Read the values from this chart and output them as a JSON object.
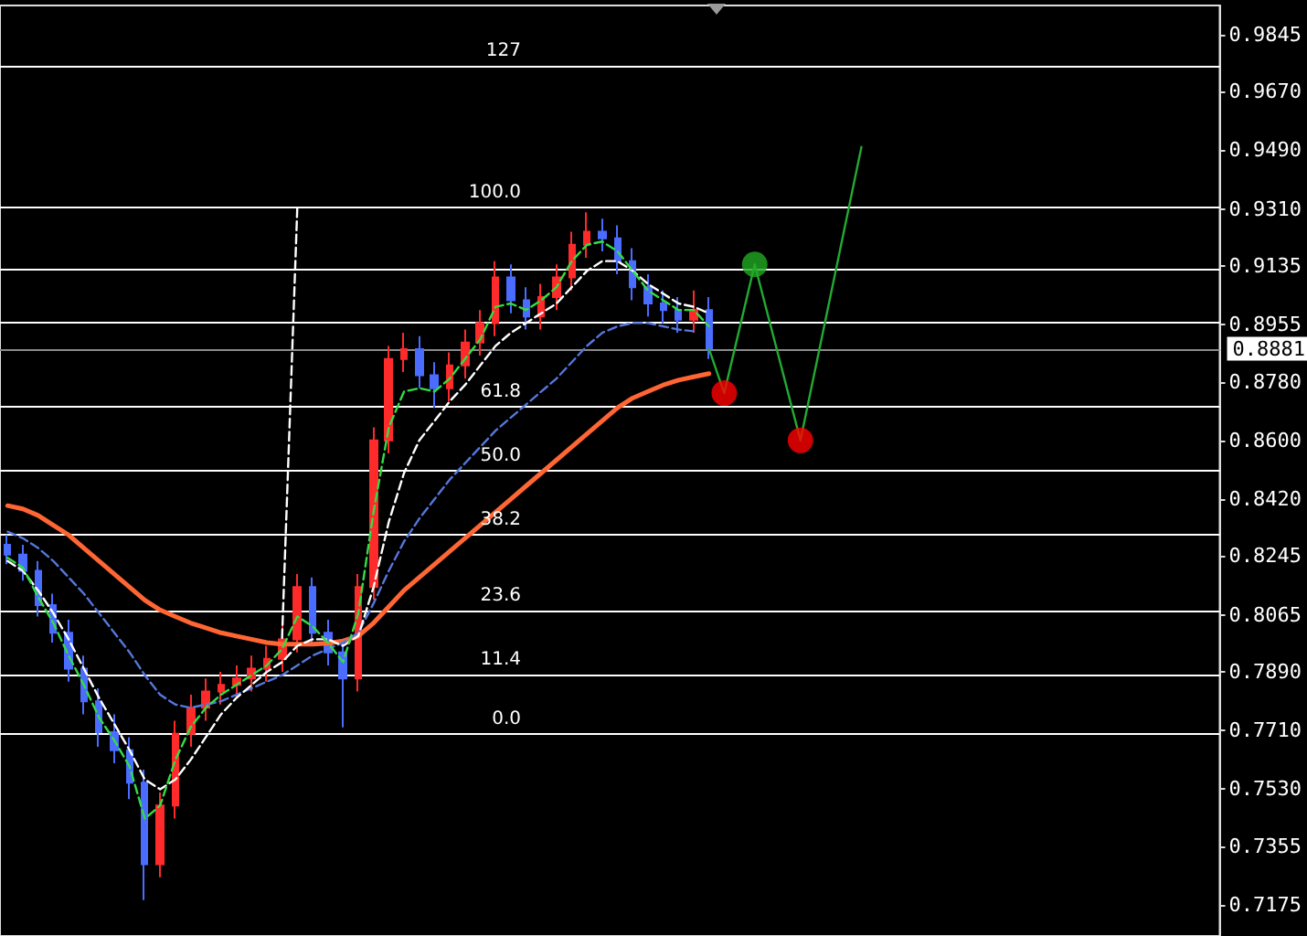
{
  "chart_data": {
    "type": "candlestick",
    "categories": [
      null,
      null,
      null,
      null,
      null,
      null,
      null,
      null,
      null,
      null,
      null,
      null,
      null,
      null,
      null,
      null,
      null,
      null,
      null,
      null,
      null,
      null,
      null,
      null,
      null,
      null,
      null,
      null,
      null,
      null,
      null,
      null,
      null,
      null,
      null,
      null,
      null,
      null,
      null,
      null,
      null,
      null,
      null,
      null,
      null,
      null,
      null,
      null,
      null,
      null,
      null,
      null,
      null,
      null,
      null,
      null,
      null,
      null,
      null,
      null,
      null,
      null,
      null,
      null,
      null,
      null,
      null,
      null,
      null,
      null,
      null,
      null,
      null,
      null,
      null,
      null,
      null,
      null,
      null,
      null
    ],
    "series": [
      {
        "colors": [
          "#4a6cff",
          "#4a6cff",
          "#4a6cff",
          "#4a6cff",
          "#4a6cff",
          "#4a6cff",
          "#4a6cff",
          "#4a6cff",
          "#4a6cff",
          "#4a6cff",
          "#ff2a2a",
          "#ff2a2a",
          "#ff2a2a",
          "#ff2a2a",
          "#ff2a2a",
          "#ff2a2a",
          "#ff2a2a",
          "#ff2a2a",
          "#ff2a2a",
          "#ff2a2a",
          "#4a6cff",
          "#4a6cff",
          "#4a6cff",
          "#ff2a2a",
          "#ff2a2a",
          "#ff2a2a",
          "#ff2a2a",
          "#4a6cff",
          "#4a6cff",
          "#ff2a2a",
          "#ff2a2a",
          "#ff2a2a",
          "#ff2a2a",
          "#4a6cff",
          "#4a6cff",
          "#ff2a2a",
          "#ff2a2a",
          "#ff2a2a",
          "#ff2a2a",
          "#4a6cff",
          "#4a6cff",
          "#4a6cff",
          "#4a6cff",
          "#4a6cff",
          "#4a6cff",
          "#ff2a2a",
          "#4a6cff",
          null,
          null,
          null,
          null,
          null,
          null,
          null,
          null,
          null,
          null,
          null,
          null,
          null,
          null,
          null,
          null,
          null,
          null,
          null,
          null,
          null,
          null,
          null,
          null,
          null,
          null,
          null,
          null,
          null,
          null,
          null,
          null,
          null
        ],
        "ohlc": [
          [
            0.828,
            0.831,
            0.822,
            0.825
          ],
          [
            0.825,
            0.828,
            0.817,
            0.82
          ],
          [
            0.82,
            0.823,
            0.806,
            0.8095
          ],
          [
            0.8095,
            0.813,
            0.798,
            0.801
          ],
          [
            0.801,
            0.805,
            0.786,
            0.79
          ],
          [
            0.79,
            0.794,
            0.776,
            0.78
          ],
          [
            0.78,
            0.784,
            0.766,
            0.7705
          ],
          [
            0.7705,
            0.776,
            0.761,
            0.765
          ],
          [
            0.765,
            0.769,
            0.75,
            0.755
          ],
          [
            0.755,
            0.759,
            0.719,
            0.73
          ],
          [
            0.73,
            0.752,
            0.726,
            0.748
          ],
          [
            0.748,
            0.774,
            0.744,
            0.77
          ],
          [
            0.77,
            0.782,
            0.766,
            0.778
          ],
          [
            0.778,
            0.787,
            0.774,
            0.783
          ],
          [
            0.783,
            0.789,
            0.779,
            0.785
          ],
          [
            0.785,
            0.791,
            0.781,
            0.787
          ],
          [
            0.787,
            0.794,
            0.783,
            0.79
          ],
          [
            0.79,
            0.797,
            0.786,
            0.793
          ],
          [
            0.793,
            0.804,
            0.789,
            0.799
          ],
          [
            0.799,
            0.819,
            0.795,
            0.815
          ],
          [
            0.815,
            0.818,
            0.797,
            0.801
          ],
          [
            0.801,
            0.805,
            0.791,
            0.795
          ],
          [
            0.795,
            0.799,
            0.772,
            0.787
          ],
          [
            0.787,
            0.819,
            0.783,
            0.815
          ],
          [
            0.815,
            0.864,
            0.811,
            0.86
          ],
          [
            0.86,
            0.889,
            0.856,
            0.885
          ],
          [
            0.885,
            0.893,
            0.881,
            0.888
          ],
          [
            0.888,
            0.892,
            0.876,
            0.88
          ],
          [
            0.88,
            0.884,
            0.87,
            0.876
          ],
          [
            0.876,
            0.887,
            0.872,
            0.883
          ],
          [
            0.883,
            0.894,
            0.879,
            0.89
          ],
          [
            0.89,
            0.9,
            0.886,
            0.896
          ],
          [
            0.896,
            0.915,
            0.892,
            0.91
          ],
          [
            0.91,
            0.914,
            0.899,
            0.903
          ],
          [
            0.903,
            0.907,
            0.894,
            0.898
          ],
          [
            0.898,
            0.908,
            0.894,
            0.904
          ],
          [
            0.904,
            0.914,
            0.9,
            0.91
          ],
          [
            0.91,
            0.924,
            0.906,
            0.92
          ],
          [
            0.92,
            0.93,
            0.916,
            0.924
          ],
          [
            0.924,
            0.928,
            0.918,
            0.922
          ],
          [
            0.922,
            0.926,
            0.911,
            0.915
          ],
          [
            0.915,
            0.919,
            0.903,
            0.907
          ],
          [
            0.907,
            0.911,
            0.898,
            0.902
          ],
          [
            0.902,
            0.906,
            0.896,
            0.9
          ],
          [
            0.9,
            0.904,
            0.893,
            0.897
          ],
          [
            0.897,
            0.906,
            0.893,
            0.9
          ],
          [
            0.9,
            0.904,
            0.885,
            0.8881
          ],
          null,
          null,
          null,
          null,
          null,
          null,
          null,
          null,
          null,
          null,
          null,
          null,
          null,
          null,
          null,
          null,
          null,
          null,
          null,
          null,
          null,
          null,
          null,
          null,
          null,
          null,
          null,
          null,
          null,
          null,
          null,
          null,
          null
        ]
      },
      {
        "type": "line",
        "color": "#ff6633",
        "line_style": "solid",
        "values": [
          0.84,
          0.839,
          0.837,
          0.834,
          0.831,
          0.827,
          0.823,
          0.819,
          0.815,
          0.811,
          0.808,
          0.806,
          0.804,
          0.8025,
          0.801,
          0.8,
          0.799,
          0.798,
          0.7975,
          0.7975,
          0.7975,
          0.7978,
          0.7985,
          0.8,
          0.804,
          0.809,
          0.814,
          0.818,
          0.822,
          0.826,
          0.83,
          0.834,
          0.838,
          0.842,
          0.846,
          0.85,
          0.854,
          0.858,
          0.862,
          0.866,
          0.87,
          0.873,
          0.875,
          0.877,
          0.8785,
          0.8795,
          0.8805,
          null,
          null,
          null,
          null,
          null,
          null,
          null,
          null,
          null,
          null,
          null,
          null,
          null,
          null,
          null,
          null,
          null,
          null,
          null,
          null,
          null,
          null,
          null,
          null,
          null,
          null,
          null,
          null,
          null,
          null,
          null,
          null,
          null
        ]
      },
      {
        "type": "line",
        "color": "#5577dd",
        "line_style": "dashed",
        "values": [
          0.832,
          0.83,
          0.827,
          0.823,
          0.818,
          0.813,
          0.807,
          0.801,
          0.795,
          0.788,
          0.782,
          0.779,
          0.778,
          0.779,
          0.78,
          0.782,
          0.784,
          0.786,
          0.788,
          0.791,
          0.794,
          0.796,
          0.798,
          0.801,
          0.81,
          0.82,
          0.829,
          0.836,
          0.842,
          0.848,
          0.853,
          0.858,
          0.863,
          0.867,
          0.871,
          0.875,
          0.879,
          0.884,
          0.889,
          0.893,
          0.895,
          0.896,
          0.896,
          0.895,
          0.894,
          0.8935,
          null,
          null,
          null,
          null,
          null,
          null,
          null,
          null,
          null,
          null,
          null,
          null,
          null,
          null,
          null,
          null,
          null,
          null,
          null,
          null,
          null,
          null,
          null,
          null,
          null,
          null,
          null,
          null,
          null,
          null,
          null,
          null,
          null,
          null
        ]
      },
      {
        "type": "line",
        "color": "#ffffff",
        "line_style": "dashed",
        "values": [
          0.823,
          0.82,
          0.814,
          0.807,
          0.799,
          0.79,
          0.781,
          0.773,
          0.765,
          0.756,
          0.753,
          0.756,
          0.762,
          0.769,
          0.776,
          0.781,
          0.785,
          0.789,
          0.792,
          0.797,
          0.799,
          0.799,
          0.797,
          0.8,
          0.815,
          0.835,
          0.85,
          0.86,
          0.866,
          0.872,
          0.877,
          0.883,
          0.889,
          0.893,
          0.896,
          0.899,
          0.902,
          0.907,
          0.912,
          0.915,
          0.915,
          0.912,
          0.908,
          0.905,
          0.902,
          0.901,
          0.899,
          null,
          null,
          null,
          null,
          null,
          null,
          null,
          null,
          null,
          null,
          null,
          null,
          null,
          null,
          null,
          null,
          null,
          null,
          null,
          null,
          null,
          null,
          null,
          null,
          null,
          null,
          null,
          null,
          null,
          null,
          null,
          null,
          null
        ]
      },
      {
        "type": "line",
        "color": "#33dd44",
        "line_style": "dashed",
        "values": [
          0.824,
          0.821,
          0.812,
          0.804,
          0.794,
          0.785,
          0.775,
          0.768,
          0.76,
          0.744,
          0.748,
          0.762,
          0.772,
          0.778,
          0.782,
          0.785,
          0.788,
          0.791,
          0.796,
          0.806,
          0.803,
          0.798,
          0.792,
          0.807,
          0.838,
          0.864,
          0.875,
          0.876,
          0.875,
          0.879,
          0.885,
          0.891,
          0.901,
          0.902,
          0.9,
          0.903,
          0.907,
          0.915,
          0.92,
          0.921,
          0.918,
          0.912,
          0.906,
          0.903,
          0.9,
          0.9,
          0.895,
          null,
          null,
          null,
          null,
          null,
          null,
          null,
          null,
          null,
          null,
          null,
          null,
          null,
          null,
          null,
          null,
          null,
          null,
          null,
          null,
          null,
          null,
          null,
          null,
          null,
          null,
          null,
          null,
          null,
          null,
          null,
          null,
          null
        ]
      },
      {
        "type": "line",
        "color": "#ffffff",
        "line_style": "dashed",
        "values": [
          null,
          null,
          null,
          null,
          null,
          null,
          null,
          null,
          null,
          null,
          null,
          null,
          null,
          null,
          null,
          null,
          null,
          null,
          0.7994,
          0.9315,
          null,
          null,
          null,
          null,
          null,
          null,
          null,
          null,
          null,
          null,
          null,
          null,
          null,
          null,
          null,
          null,
          null,
          null,
          null,
          null,
          null,
          null,
          null,
          null,
          null,
          null,
          null,
          null,
          null,
          null,
          null,
          null,
          null,
          null,
          null,
          null,
          null,
          null,
          null,
          null,
          null,
          null,
          null,
          null,
          null,
          null,
          null,
          null,
          null,
          null,
          null,
          null,
          null,
          null,
          null,
          null,
          null,
          null,
          null,
          null
        ]
      },
      {
        "type": "line",
        "color": "#22aa33",
        "line_style": "solid",
        "values": [
          null,
          null,
          null,
          null,
          null,
          null,
          null,
          null,
          null,
          null,
          null,
          null,
          null,
          null,
          null,
          null,
          null,
          null,
          null,
          null,
          null,
          null,
          null,
          null,
          null,
          null,
          null,
          null,
          null,
          null,
          null,
          null,
          null,
          null,
          null,
          null,
          null,
          null,
          null,
          null,
          null,
          null,
          null,
          null,
          null,
          null,
          0.8881,
          0.8745,
          null,
          0.914,
          null,
          null,
          0.86,
          null,
          null,
          null,
          0.95,
          null,
          null,
          null,
          null,
          null,
          null,
          null,
          null,
          null,
          null,
          null,
          null,
          null,
          null,
          null,
          null,
          null,
          null,
          null,
          null,
          null,
          null,
          null
        ]
      },
      {
        "type": "scatter",
        "marker": "circle",
        "color": "#ff0000",
        "values": [
          null,
          null,
          null,
          null,
          null,
          null,
          null,
          null,
          null,
          null,
          null,
          null,
          null,
          null,
          null,
          null,
          null,
          null,
          null,
          null,
          null,
          null,
          null,
          null,
          null,
          null,
          null,
          null,
          null,
          null,
          null,
          null,
          null,
          null,
          null,
          null,
          null,
          null,
          null,
          null,
          null,
          null,
          null,
          null,
          null,
          null,
          null,
          0.8745,
          null,
          null,
          null,
          null,
          0.86,
          null,
          null,
          null,
          null,
          null,
          null,
          null,
          null,
          null,
          null,
          null,
          null,
          null,
          null,
          null,
          null,
          null,
          null,
          null,
          null,
          null,
          null,
          null,
          null,
          null,
          null,
          null
        ]
      },
      {
        "type": "scatter",
        "marker": "circle",
        "color": "#22aa22",
        "values": [
          null,
          null,
          null,
          null,
          null,
          null,
          null,
          null,
          null,
          null,
          null,
          null,
          null,
          null,
          null,
          null,
          null,
          null,
          null,
          null,
          null,
          null,
          null,
          null,
          null,
          null,
          null,
          null,
          null,
          null,
          null,
          null,
          null,
          null,
          null,
          null,
          null,
          null,
          null,
          null,
          null,
          null,
          null,
          null,
          null,
          null,
          null,
          null,
          null,
          0.914,
          null,
          null,
          null,
          null,
          null,
          null,
          null,
          null,
          null,
          null,
          null,
          null,
          null,
          null,
          null,
          null,
          null,
          null,
          null,
          null,
          null,
          null,
          null,
          null,
          null,
          null,
          null,
          null,
          null,
          null
        ]
      }
    ],
    "ylim": [
      0.708,
      0.9934
    ],
    "yticks": [
      0.9845,
      {
        "value": 0.967,
        "label": "0.9670"
      },
      {
        "value": 0.949,
        "label": "0.9490"
      },
      {
        "value": 0.931,
        "label": "0.9310"
      },
      0.9135,
      0.8955,
      {
        "value": 0.878,
        "label": "0.8780"
      },
      {
        "value": 0.86,
        "label": "0.8600"
      },
      {
        "value": 0.842,
        "label": "0.8420"
      },
      0.8245,
      0.8065,
      {
        "value": 0.789,
        "label": "0.7890"
      },
      {
        "value": 0.771,
        "label": "0.7710"
      },
      {
        "value": 0.753,
        "label": "0.7530"
      },
      0.7355,
      0.7175
    ],
    "ref_lines": [
      {
        "axis": "y",
        "value": 0.975
      },
      {
        "axis": "y",
        "value": 0.9315
      },
      {
        "axis": "y",
        "value": 0.8702
      },
      {
        "axis": "y",
        "value": 0.8507
      },
      {
        "axis": "y",
        "value": 0.8312
      },
      {
        "axis": "y",
        "value": 0.8078
      },
      {
        "axis": "y",
        "value": 0.7883
      },
      {
        "axis": "y",
        "value": 0.7699
      },
      {
        "axis": "y",
        "value": 0.9126
      },
      {
        "axis": "y",
        "value": 0.8964
      },
      {
        "axis": "y",
        "value": 0.8881,
        "label": "0.8881",
        "color": "#8a8a8a"
      }
    ],
    "annotations": [
      "127",
      "100.0",
      "61.8",
      "50.0",
      "38.2",
      "23.6",
      "11.4",
      "0.0"
    ],
    "marker": "none",
    "grid": false,
    "tick_labels": "y"
  }
}
